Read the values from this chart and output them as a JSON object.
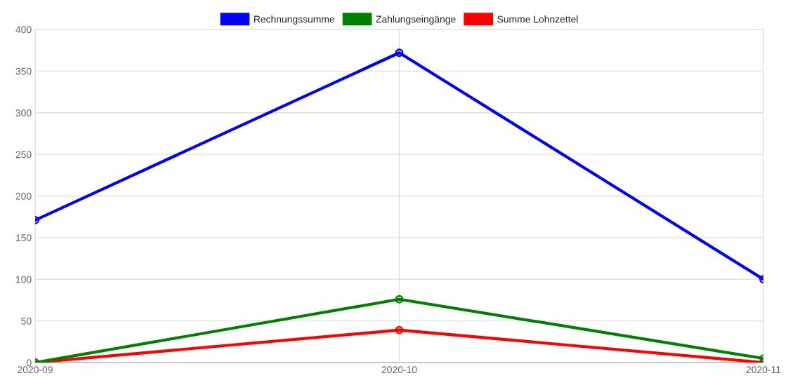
{
  "chart_data": {
    "type": "line",
    "categories": [
      "2020-09",
      "2020-10",
      "2020-11"
    ],
    "series": [
      {
        "name": "Rechnungssumme",
        "color": "#0000ff",
        "values": [
          171,
          372,
          100
        ]
      },
      {
        "name": "Zahlungseingänge",
        "color": "#008000",
        "values": [
          0,
          76,
          5
        ]
      },
      {
        "name": "Summe Lohnzettel",
        "color": "#ff0000",
        "values": [
          0,
          39,
          0
        ]
      }
    ],
    "ylim": [
      0,
      400
    ],
    "yticks": [
      0,
      50,
      100,
      150,
      200,
      250,
      300,
      350,
      400
    ],
    "grid": true,
    "legend": "top",
    "marker": "circle",
    "line_style": "solid"
  }
}
